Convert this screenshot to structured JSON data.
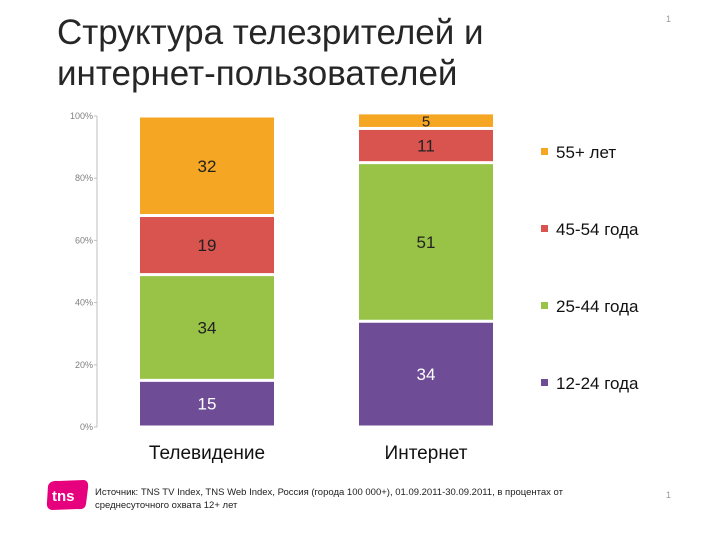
{
  "slide": {
    "title_line1": "Структура телезрителей и",
    "title_line2": "интернет-пользователей",
    "page_number": "1",
    "page_number_bottom": "1",
    "source": "Источник: TNS TV Index, TNS Web Index, Россия (города 100 000+), 01.09.2011-30.09.2011, в процентах от среднесуточного охвата 12+ лет",
    "logo_text": "tns"
  },
  "colors": {
    "55+": "#F5A623",
    "45-54": "#D9534F",
    "25-44": "#98C346",
    "12-24": "#6E4C96",
    "logo": "#E6007E"
  },
  "chart_data": {
    "type": "bar",
    "stacked": true,
    "categories": [
      "Телевидение",
      "Интернет"
    ],
    "series": [
      {
        "name": "12-24 года",
        "key": "12-24",
        "values": [
          15,
          34
        ]
      },
      {
        "name": "25-44 года",
        "key": "25-44",
        "values": [
          34,
          51
        ]
      },
      {
        "name": "45-54 года",
        "key": "45-54",
        "values": [
          19,
          11
        ]
      },
      {
        "name": "55+ лет",
        "key": "55+",
        "values": [
          32,
          5
        ]
      }
    ],
    "ylim": [
      0,
      100
    ],
    "yticks": [
      "0%",
      "20%",
      "40%",
      "60%",
      "80%",
      "100%"
    ],
    "legend_position": "right",
    "legend_order": [
      "55+",
      "45-54",
      "25-44",
      "12-24"
    ],
    "grid": false
  }
}
